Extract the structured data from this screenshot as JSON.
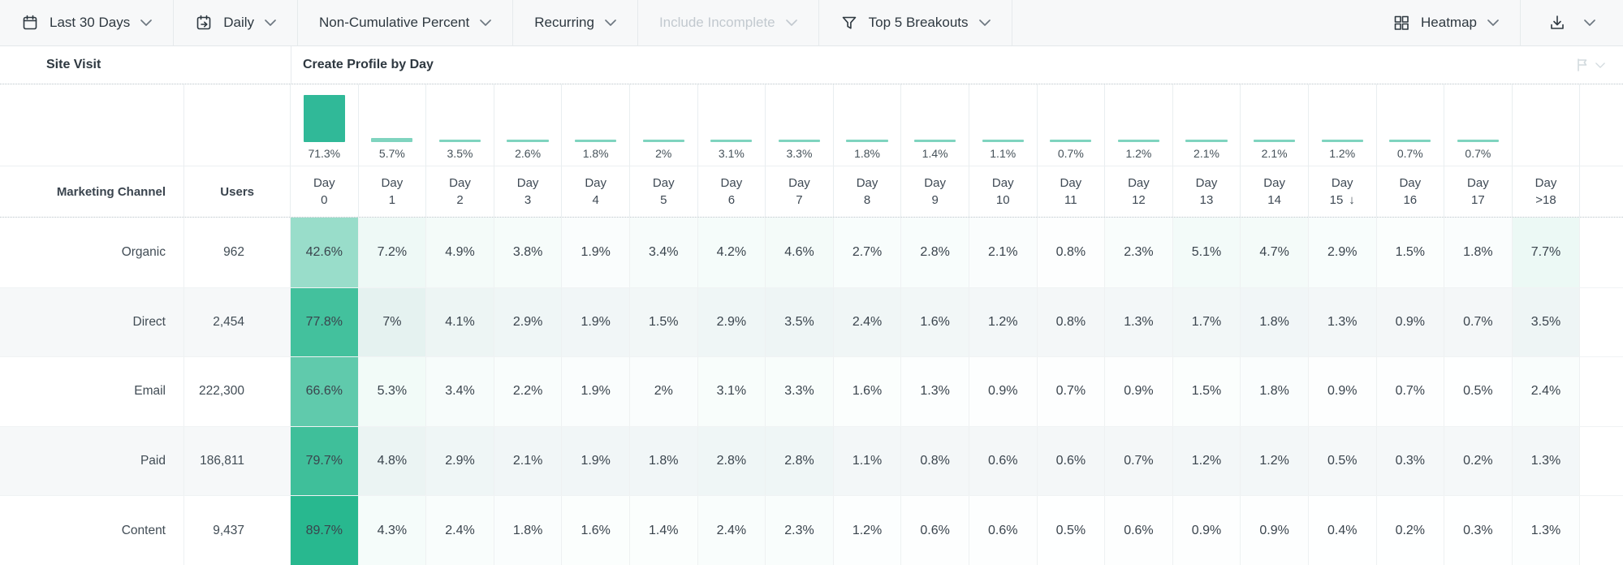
{
  "toolbar": {
    "left_items": [
      {
        "id": "date-range",
        "label": "Last 30 Days",
        "icon": "calendar",
        "disabled": false
      },
      {
        "id": "interval",
        "label": "Daily",
        "icon": "calendar-day",
        "disabled": false
      },
      {
        "id": "metric",
        "label": "Non-Cumulative Percent",
        "icon": null,
        "disabled": false
      },
      {
        "id": "usage-type",
        "label": "Recurring",
        "icon": null,
        "disabled": false
      },
      {
        "id": "include-incomplete",
        "label": "Include Incomplete",
        "icon": null,
        "disabled": true
      },
      {
        "id": "breakouts",
        "label": "Top 5 Breakouts",
        "icon": "funnel",
        "disabled": false
      }
    ],
    "view": {
      "label": "Heatmap",
      "icon": "grid"
    },
    "export": {
      "icon": "download"
    }
  },
  "titles": {
    "left": "Site Visit",
    "right": "Create Profile by Day"
  },
  "table": {
    "row_header": "Marketing Channel",
    "users_header": "Users",
    "day_prefix": "Day",
    "sorted_day_index": 15,
    "sort_direction": "down"
  },
  "chart_data": {
    "type": "heatmap",
    "title": "Create Profile by Day",
    "event": "Site Visit",
    "columns": [
      "Day 0",
      "Day 1",
      "Day 2",
      "Day 3",
      "Day 4",
      "Day 5",
      "Day 6",
      "Day 7",
      "Day 8",
      "Day 9",
      "Day 10",
      "Day 11",
      "Day 12",
      "Day 13",
      "Day 14",
      "Day 15",
      "Day 16",
      "Day 17",
      "Day >18"
    ],
    "summary_percent": [
      71.3,
      5.7,
      3.5,
      2.6,
      1.8,
      2,
      3.1,
      3.3,
      1.8,
      1.4,
      1.1,
      0.7,
      1.2,
      2.1,
      2.1,
      1.2,
      0.7,
      0.7,
      null
    ],
    "rows": [
      {
        "channel": "Organic",
        "users": "962",
        "values": [
          42.6,
          7.2,
          4.9,
          3.8,
          1.9,
          3.4,
          4.2,
          4.6,
          2.7,
          2.8,
          2.1,
          0.8,
          2.3,
          5.1,
          4.7,
          2.9,
          1.5,
          1.8,
          7.7
        ]
      },
      {
        "channel": "Direct",
        "users": "2,454",
        "values": [
          77.8,
          7,
          4.1,
          2.9,
          1.9,
          1.5,
          2.9,
          3.5,
          2.4,
          1.6,
          1.2,
          0.8,
          1.3,
          1.7,
          1.8,
          1.3,
          0.9,
          0.7,
          3.5
        ]
      },
      {
        "channel": "Email",
        "users": "222,300",
        "values": [
          66.6,
          5.3,
          3.4,
          2.2,
          1.9,
          2,
          3.1,
          3.3,
          1.6,
          1.3,
          0.9,
          0.7,
          0.9,
          1.5,
          1.8,
          0.9,
          0.7,
          0.5,
          2.4
        ]
      },
      {
        "channel": "Paid",
        "users": "186,811",
        "values": [
          79.7,
          4.8,
          2.9,
          2.1,
          1.9,
          1.8,
          2.8,
          2.8,
          1.1,
          0.8,
          0.6,
          0.6,
          0.7,
          1.2,
          1.2,
          0.5,
          0.3,
          0.2,
          1.3
        ]
      },
      {
        "channel": "Content",
        "users": "9,437",
        "values": [
          89.7,
          4.3,
          2.4,
          1.8,
          1.6,
          1.4,
          2.4,
          2.3,
          1.2,
          0.6,
          0.6,
          0.5,
          0.6,
          0.9,
          0.9,
          0.4,
          0.2,
          0.3,
          1.3
        ]
      }
    ],
    "accent_color": "#10b082",
    "bar_color": "#30b998",
    "legend_position": "none",
    "grid": true
  }
}
